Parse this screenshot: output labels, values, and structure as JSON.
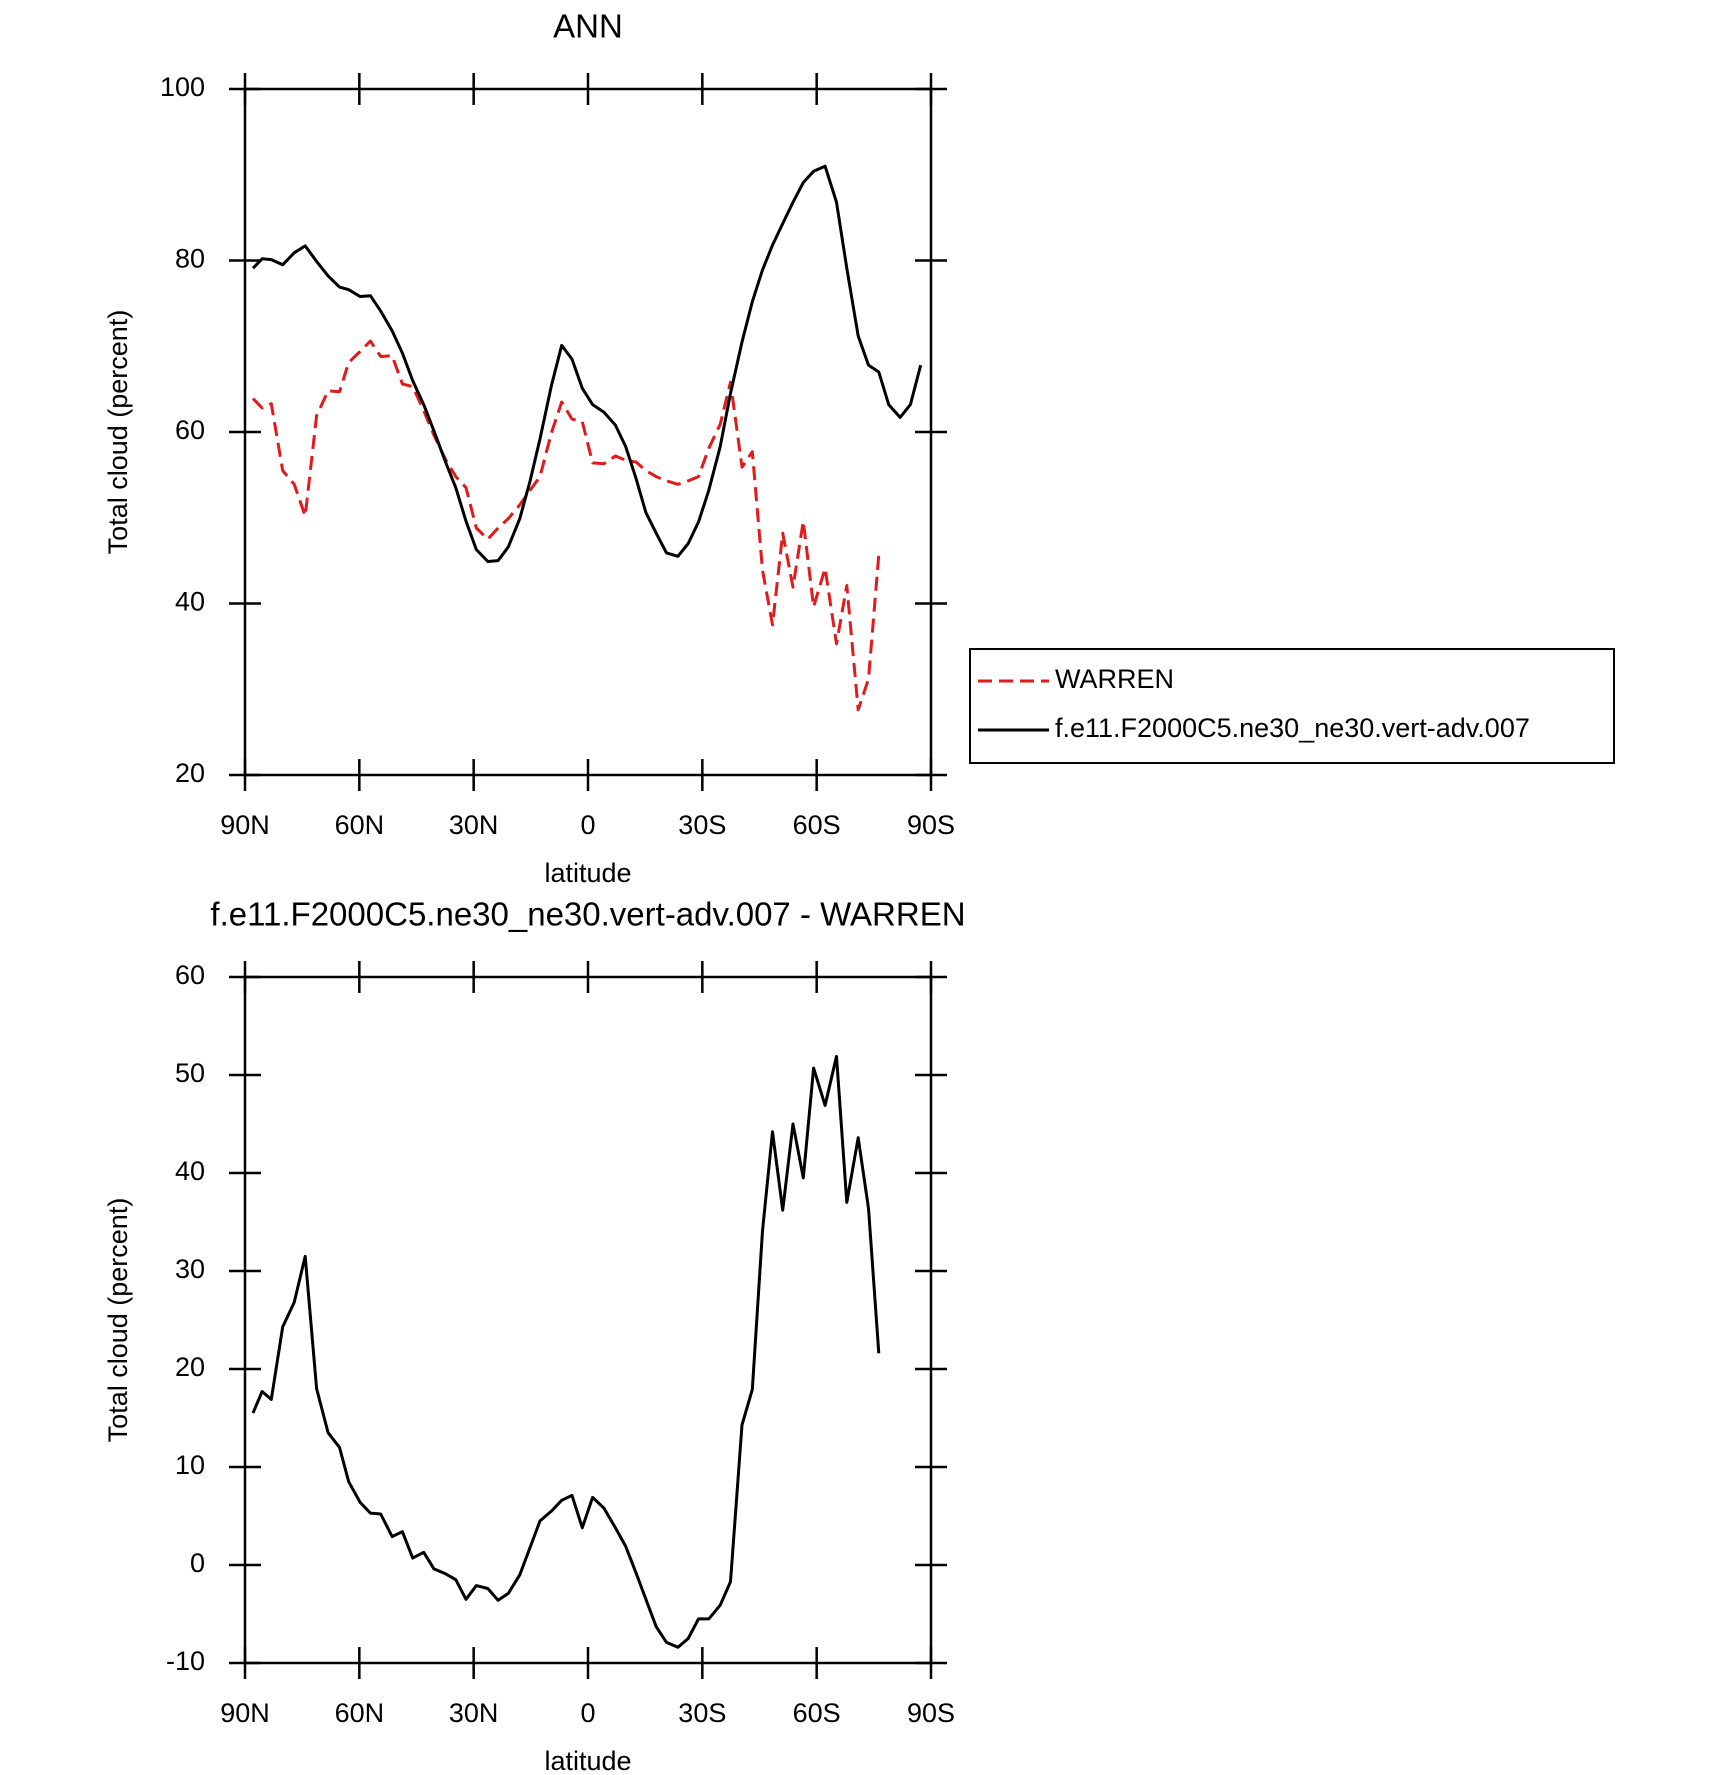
{
  "chart_data": [
    {
      "type": "line",
      "title": "ANN",
      "xlabel": "latitude",
      "ylabel": "Total cloud (percent)",
      "x": [
        87.9,
        85.5,
        83.1,
        80.1,
        77.1,
        74.2,
        71.2,
        68.2,
        65.2,
        62.8,
        59.8,
        57.1,
        54.4,
        51.4,
        48.7,
        46.0,
        43.1,
        40.4,
        37.4,
        34.7,
        32.0,
        29.3,
        26.3,
        23.6,
        20.9,
        17.9,
        15.2,
        12.6,
        9.6,
        6.9,
        4.2,
        1.5,
        -1.2,
        -4.2,
        -7.2,
        -9.9,
        -12.6,
        -15.2,
        -17.9,
        -20.6,
        -23.6,
        -26.3,
        -29.0,
        -31.7,
        -34.7,
        -37.4,
        -40.4,
        -43.1,
        -45.8,
        -48.4,
        -51.1,
        -53.8,
        -56.5,
        -59.2,
        -62.2,
        -65.2,
        -67.9,
        -70.9,
        -73.6,
        -76.3,
        -78.9,
        -81.9,
        -84.6,
        -87.3
      ],
      "series": [
        {
          "name": "WARREN",
          "color": "#e31a1c",
          "linestyle": "dashed",
          "values": [
            63.9,
            62.8,
            63.3,
            55.5,
            53.9,
            50.2,
            61.9,
            64.8,
            64.7,
            68.1,
            69.4,
            70.6,
            68.8,
            68.9,
            65.6,
            65.3,
            62.5,
            59.6,
            56.8,
            54.8,
            53.5,
            48.8,
            47.5,
            48.8,
            49.9,
            51.5,
            53.2,
            54.8,
            59.9,
            63.5,
            61.5,
            61.2,
            56.4,
            56.3,
            57.2,
            56.7,
            56.5,
            55.5,
            54.8,
            54.3,
            53.9,
            54.3,
            54.8,
            58.1,
            60.9,
            65.8,
            55.9,
            57.7,
            43.9,
            37.5,
            48.2,
            41.9,
            49.6,
            39.6,
            44.1,
            35.3,
            42.1,
            27.6,
            31.2,
            45.7,
            null,
            null,
            null,
            null
          ]
        },
        {
          "name": "f.e11.F2000C5.ne30_ne30.vert-adv.007",
          "color": "#000000",
          "linestyle": "solid",
          "values": [
            79.1,
            80.2,
            80.1,
            79.5,
            80.9,
            81.7,
            79.9,
            78.2,
            76.9,
            76.6,
            75.8,
            75.9,
            74.1,
            71.8,
            69.2,
            66.0,
            63.2,
            60.1,
            56.5,
            53.5,
            49.6,
            46.3,
            44.9,
            45.0,
            46.6,
            49.9,
            54.3,
            59.2,
            65.4,
            70.1,
            68.5,
            65.1,
            63.2,
            62.3,
            60.8,
            58.3,
            54.6,
            50.6,
            48.2,
            45.9,
            45.5,
            47.0,
            49.5,
            53.2,
            58.3,
            64.5,
            70.5,
            75.2,
            78.9,
            81.8,
            84.3,
            86.8,
            89.1,
            90.4,
            91.0,
            86.8,
            79.1,
            71.2,
            67.8,
            67.0,
            63.2,
            61.7,
            63.2,
            67.8
          ]
        }
      ],
      "xlim": [
        90,
        -90
      ],
      "xticks": [
        {
          "value": 90,
          "label": "90N"
        },
        {
          "value": 60,
          "label": "60N"
        },
        {
          "value": 30,
          "label": "30N"
        },
        0,
        {
          "value": -30,
          "label": "30S"
        },
        {
          "value": -60,
          "label": "60S"
        },
        {
          "value": -90,
          "label": "90S"
        }
      ],
      "ylim": [
        20,
        100
      ],
      "yticks": [
        20,
        40,
        60,
        80,
        100
      ],
      "legend": "right"
    },
    {
      "type": "line",
      "title": "f.e11.F2000C5.ne30_ne30.vert-adv.007 - WARREN",
      "xlabel": "latitude",
      "ylabel": "Total cloud (percent)",
      "x": [
        87.9,
        85.5,
        83.1,
        80.1,
        77.1,
        74.2,
        71.2,
        68.2,
        65.2,
        62.8,
        59.8,
        57.1,
        54.4,
        51.4,
        48.7,
        46.0,
        43.1,
        40.4,
        37.4,
        34.7,
        32.0,
        29.3,
        26.3,
        23.6,
        20.9,
        17.9,
        15.2,
        12.6,
        9.6,
        6.9,
        4.2,
        1.5,
        -1.2,
        -4.2,
        -7.2,
        -9.9,
        -12.6,
        -15.2,
        -17.9,
        -20.6,
        -23.6,
        -26.3,
        -29.0,
        -31.7,
        -34.7,
        -37.4,
        -40.4,
        -43.1,
        -45.8,
        -48.4,
        -51.1,
        -53.8,
        -56.5,
        -59.2,
        -62.2,
        -65.2,
        -67.9,
        -70.9,
        -73.6,
        -76.3
      ],
      "series": [
        {
          "color": "#000000",
          "linestyle": "solid",
          "values": [
            15.5,
            17.7,
            16.9,
            24.3,
            26.8,
            31.5,
            18.0,
            13.5,
            12.0,
            8.5,
            6.4,
            5.3,
            5.2,
            2.9,
            3.4,
            0.7,
            1.3,
            -0.4,
            -0.9,
            -1.5,
            -3.5,
            -2.1,
            -2.4,
            -3.6,
            -2.9,
            -1.0,
            1.8,
            4.5,
            5.5,
            6.6,
            7.1,
            3.8,
            6.9,
            5.8,
            3.8,
            1.9,
            -0.8,
            -3.5,
            -6.3,
            -7.9,
            -8.4,
            -7.5,
            -5.5,
            -5.5,
            -4.1,
            -1.7,
            14.3,
            17.9,
            34.1,
            44.2,
            36.2,
            45.0,
            39.5,
            50.7,
            46.9,
            51.9,
            37.0,
            43.6,
            36.4,
            21.6
          ]
        }
      ],
      "xlim": [
        90,
        -90
      ],
      "xticks": [
        {
          "value": 90,
          "label": "90N"
        },
        {
          "value": 60,
          "label": "60N"
        },
        {
          "value": 30,
          "label": "30N"
        },
        0,
        {
          "value": -30,
          "label": "30S"
        },
        {
          "value": -60,
          "label": "60S"
        },
        {
          "value": -90,
          "label": "90S"
        }
      ],
      "ylim": [
        -10,
        60
      ],
      "yticks": [
        -10,
        0,
        10,
        20,
        30,
        40,
        50,
        60
      ]
    }
  ]
}
